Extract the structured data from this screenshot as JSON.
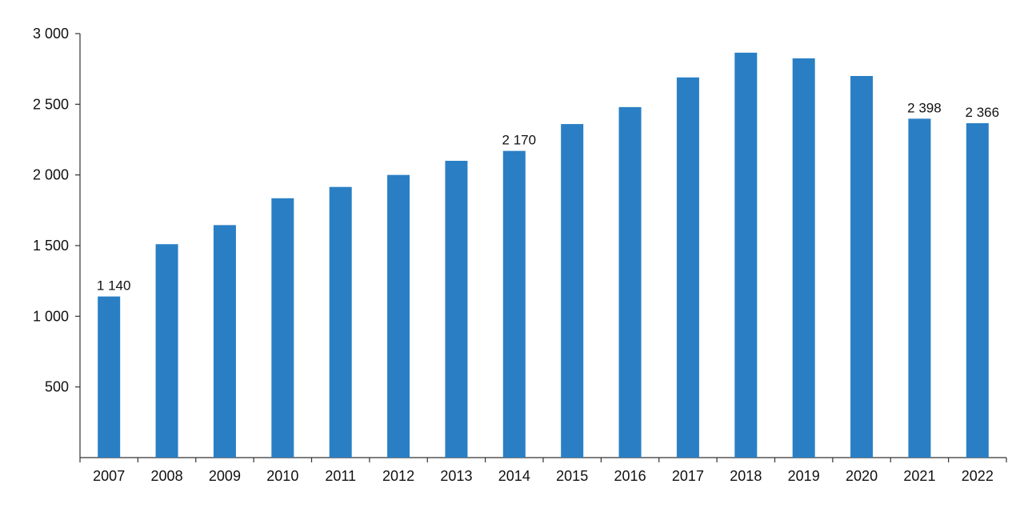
{
  "chart_data": {
    "type": "bar",
    "categories": [
      "2007",
      "2008",
      "2009",
      "2010",
      "2011",
      "2012",
      "2013",
      "2014",
      "2015",
      "2016",
      "2017",
      "2018",
      "2019",
      "2020",
      "2021",
      "2022"
    ],
    "values": [
      1140,
      1510,
      1645,
      1835,
      1915,
      2000,
      2100,
      2170,
      2360,
      2480,
      2690,
      2865,
      2825,
      2700,
      2398,
      2366
    ],
    "data_labels": [
      {
        "index": 0,
        "text": "1 140"
      },
      {
        "index": 7,
        "text": "2 170"
      },
      {
        "index": 14,
        "text": "2 398"
      },
      {
        "index": 15,
        "text": "2 366"
      }
    ],
    "title": "",
    "xlabel": "",
    "ylabel": "",
    "ylim": [
      0,
      3000
    ],
    "y_ticks": [
      500,
      1000,
      1500,
      2000,
      2500,
      3000
    ],
    "y_tick_labels": [
      "500",
      "1 000",
      "1 500",
      "2 000",
      "2 500",
      "3 000"
    ],
    "bar_color": "#2a7fc4",
    "grid": false,
    "legend": "none"
  }
}
